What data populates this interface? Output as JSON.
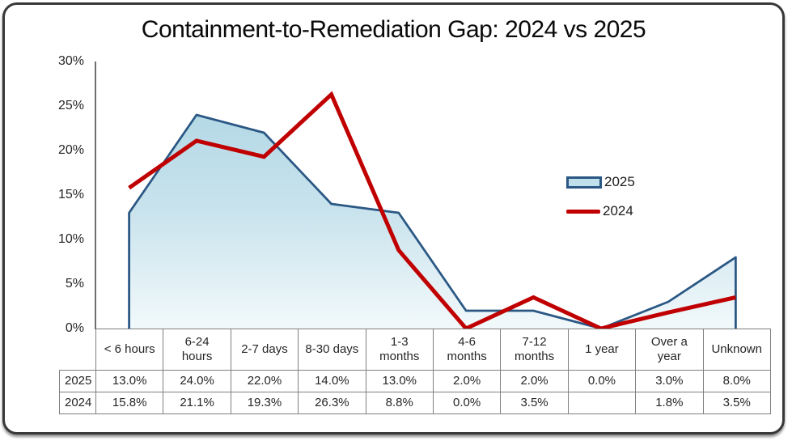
{
  "title": "Containment-to-Remediation Gap: 2024 vs 2025",
  "colors": {
    "area_line": "#2A5784",
    "area_fill_top": "#B4D9E6",
    "area_fill_mid": "#C9E3ED",
    "area_fill_bottom": "#F2F9FB",
    "red_line": "#C00000",
    "axis_line": "#6e6e6e",
    "table_border": "#7f7f7f",
    "text": "#262626"
  },
  "chart_data": {
    "type": "area+line",
    "title": "Containment-to-Remediation Gap: 2024 vs 2025",
    "categories": [
      "< 6 hours",
      "6-24 hours",
      "2-7 days",
      "8-30 days",
      "1-3 months",
      "4-6 months",
      "7-12 months",
      "1 year",
      "Over a year",
      "Unknown"
    ],
    "series": [
      {
        "name": "2025",
        "type": "area",
        "color": "#2A5784",
        "values": [
          13.0,
          24.0,
          22.0,
          14.0,
          13.0,
          2.0,
          2.0,
          0.0,
          3.0,
          8.0
        ]
      },
      {
        "name": "2024",
        "type": "line",
        "color": "#C00000",
        "values": [
          15.8,
          21.1,
          19.3,
          26.3,
          8.8,
          0.0,
          3.5,
          null,
          1.8,
          3.5
        ]
      }
    ],
    "xlabel": "",
    "ylabel": "",
    "ylim": [
      0,
      30
    ],
    "y_tick_labels": [
      "0%",
      "5%",
      "10%",
      "15%",
      "20%",
      "25%",
      "30%"
    ],
    "grid": false,
    "legend_position": "right-center"
  },
  "table": {
    "row_headers": [
      "2025",
      "2024"
    ],
    "column_headers": [
      "< 6 hours",
      "6-24 hours",
      "2-7 days",
      "8-30 days",
      "1-3 months",
      "4-6 months",
      "7-12 months",
      "1 year",
      "Over a year",
      "Unknown"
    ],
    "rows": [
      [
        "13.0%",
        "24.0%",
        "22.0%",
        "14.0%",
        "13.0%",
        "2.0%",
        "2.0%",
        "0.0%",
        "3.0%",
        "8.0%"
      ],
      [
        "15.8%",
        "21.1%",
        "19.3%",
        "26.3%",
        "8.8%",
        "0.0%",
        "3.5%",
        "",
        "1.8%",
        "3.5%"
      ]
    ]
  }
}
